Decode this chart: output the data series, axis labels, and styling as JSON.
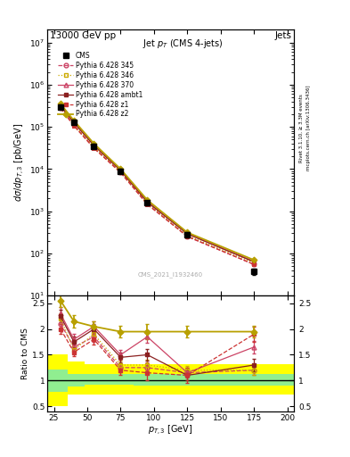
{
  "title_top": "13000 GeV pp",
  "title_right": "Jets",
  "plot_title": "Jet p_{T} (CMS 4-jets)",
  "xlabel": "p_{T,3} [GeV]",
  "ylabel_main": "dσ/dp_{T,3} [pb/GeV]",
  "ylabel_ratio": "Ratio to CMS",
  "watermark": "CMS_2021_I1932460",
  "rivet_label": "Rivet 3.1.10, ≥ 3.3M events",
  "arxiv_label": "[arXiv:1306.3436]",
  "mcplots_label": "mcplots.cern.ch",
  "cms_x": [
    30,
    40,
    55,
    75,
    95,
    125,
    175
  ],
  "cms_y": [
    300000.0,
    130000.0,
    35000.0,
    9000,
    1600,
    280,
    37
  ],
  "cms_yerr_lo": [
    40000.0,
    15000.0,
    4000.0,
    1200,
    200,
    40,
    6
  ],
  "cms_yerr_hi": [
    40000.0,
    15000.0,
    4000.0,
    1200,
    200,
    40,
    6
  ],
  "py_x": [
    30,
    40,
    55,
    75,
    95,
    125,
    175
  ],
  "py345_y": [
    280000.0,
    110000.0,
    32000.0,
    8500,
    1500,
    250,
    55
  ],
  "py346_y": [
    290000.0,
    115000.0,
    33500.0,
    8800,
    1580,
    265,
    60
  ],
  "py370_y": [
    330000.0,
    130000.0,
    38000.0,
    9500,
    1700,
    300,
    65
  ],
  "pyambt1_y": [
    310000.0,
    125000.0,
    36000.0,
    9200,
    1650,
    290,
    63
  ],
  "pyz1_y": [
    275000.0,
    105000.0,
    31000.0,
    8200,
    1450,
    255,
    55
  ],
  "pyz2_y": [
    350000.0,
    140000.0,
    40000.0,
    10000.0,
    1850,
    315,
    70
  ],
  "ratio_x": [
    30,
    40,
    55,
    75,
    95,
    125,
    175
  ],
  "ratio_py345": [
    2.1,
    1.65,
    1.85,
    1.25,
    1.25,
    1.15,
    1.2
  ],
  "ratio_py345_err": [
    0.1,
    0.08,
    0.1,
    0.09,
    0.1,
    0.08,
    0.1
  ],
  "ratio_py346": [
    2.2,
    1.6,
    1.9,
    1.3,
    1.3,
    1.2,
    1.2
  ],
  "ratio_py346_err": [
    0.1,
    0.08,
    0.1,
    0.09,
    0.1,
    0.08,
    0.1
  ],
  "ratio_py370": [
    2.3,
    1.8,
    2.05,
    1.5,
    1.85,
    1.15,
    1.65
  ],
  "ratio_py370_err": [
    0.12,
    0.1,
    0.1,
    0.1,
    0.12,
    0.1,
    0.12
  ],
  "ratio_pyambt1": [
    2.25,
    1.75,
    2.0,
    1.45,
    1.5,
    1.1,
    1.3
  ],
  "ratio_pyambt1_err": [
    0.12,
    0.1,
    0.1,
    0.1,
    0.12,
    0.1,
    0.12
  ],
  "ratio_pyz1": [
    2.0,
    1.55,
    1.8,
    1.2,
    1.15,
    1.1,
    1.9
  ],
  "ratio_pyz1_err": [
    0.1,
    0.08,
    0.1,
    0.09,
    0.15,
    0.15,
    0.15
  ],
  "ratio_pyz2": [
    2.55,
    2.15,
    2.05,
    1.95,
    1.95,
    1.95,
    1.95
  ],
  "ratio_pyz2_err": [
    0.12,
    0.12,
    0.1,
    0.12,
    0.15,
    0.12,
    0.12
  ],
  "yellow_bins": [
    [
      20,
      35
    ],
    [
      35,
      48
    ],
    [
      48,
      65
    ],
    [
      65,
      85
    ],
    [
      85,
      110
    ],
    [
      110,
      145
    ],
    [
      145,
      205
    ]
  ],
  "yellow_lo": [
    0.5,
    0.73,
    0.73,
    0.73,
    0.73,
    0.73,
    0.73
  ],
  "yellow_hi": [
    1.5,
    1.37,
    1.32,
    1.32,
    1.32,
    1.32,
    1.32
  ],
  "green_bins": [
    [
      20,
      35
    ],
    [
      35,
      48
    ],
    [
      48,
      65
    ],
    [
      65,
      85
    ],
    [
      85,
      110
    ],
    [
      110,
      145
    ],
    [
      145,
      205
    ]
  ],
  "green_lo": [
    0.78,
    0.88,
    0.92,
    0.92,
    0.9,
    0.9,
    0.9
  ],
  "green_hi": [
    1.22,
    1.13,
    1.12,
    1.12,
    1.12,
    1.12,
    1.12
  ],
  "color_345": "#cc4466",
  "color_346": "#ccaa00",
  "color_370": "#cc4466",
  "color_ambt1": "#8b2020",
  "color_z1": "#cc3333",
  "color_z2": "#b8a000",
  "ylim_main": [
    10,
    20000000.0
  ],
  "ylim_ratio": [
    0.4,
    2.65
  ],
  "xlim": [
    20,
    205
  ],
  "yticks_ratio": [
    0.5,
    1.0,
    1.5,
    2.0,
    2.5
  ]
}
